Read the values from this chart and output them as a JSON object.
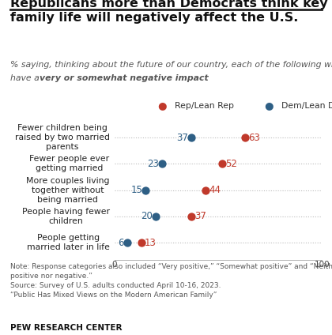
{
  "title": "Republicans more than Democrats think key trends in\nfamily life will negatively affect the U.S.",
  "subtitle_line1": "% saying, thinking about the future of our country, each of the following will",
  "subtitle_line2_normal": "have a ",
  "subtitle_line2_bold": "very or somewhat negative impact",
  "categories": [
    "Fewer children being\nraised by two married\nparents",
    "Fewer people ever\ngetting married",
    "More couples living\ntogether without\nbeing married",
    "People having fewer\nchildren",
    "People getting\nmarried later in life"
  ],
  "rep_values": [
    63,
    52,
    44,
    37,
    13
  ],
  "dem_values": [
    37,
    23,
    15,
    20,
    6
  ],
  "rep_color": "#c0392b",
  "dem_color": "#2e5f85",
  "rep_label": "Rep/Lean Rep",
  "dem_label": "Dem/Lean Dem",
  "note_line1": "Note: Response categories also included “Very positive,” “Somewhat positive” and “Neither",
  "note_line2": "positive nor negative.”",
  "note_line3": "Source: Survey of U.S. adults conducted April 10-16, 2023.",
  "note_line4": "“Public Has Mixed Views on the Modern American Family”",
  "source_label": "PEW RESEARCH CENTER",
  "bg_color": "#ffffff",
  "dot_size": 55,
  "line_color": "#bbbbbb",
  "dot_label_fontsize": 8.5,
  "cat_fontsize": 7.8,
  "legend_fontsize": 7.8,
  "note_fontsize": 6.5,
  "source_fontsize": 7.5,
  "title_fontsize": 11.5,
  "subtitle_fontsize": 7.8
}
